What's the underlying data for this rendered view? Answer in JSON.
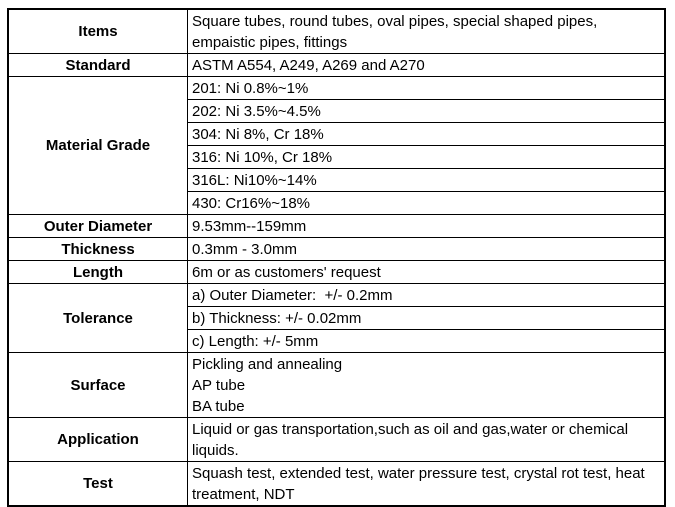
{
  "table": {
    "colors": {
      "border": "#000000",
      "text": "#000000",
      "background": "#ffffff"
    },
    "rows": [
      {
        "label": "Items",
        "lines": [
          "Square tubes, round tubes, oval pipes, special shaped pipes,",
          "empaistic pipes, fittings"
        ]
      },
      {
        "label": "Standard",
        "lines": [
          "ASTM A554, A249, A269 and A270"
        ]
      },
      {
        "label": "Material Grade",
        "lines": [
          "201: Ni 0.8%~1%",
          "202: Ni 3.5%~4.5%",
          "304: Ni 8%, Cr 18%",
          "316: Ni 10%, Cr 18%",
          "316L: Ni10%~14%",
          "430: Cr16%~18%"
        ]
      },
      {
        "label": "Outer Diameter",
        "lines": [
          "9.53mm--159mm"
        ]
      },
      {
        "label": "Thickness",
        "lines": [
          "0.3mm - 3.0mm"
        ]
      },
      {
        "label": "Length",
        "lines": [
          "6m or as customers' request"
        ]
      },
      {
        "label": "Tolerance",
        "lines": [
          "a) Outer Diameter:  +/- 0.2mm",
          "b) Thickness: +/- 0.02mm",
          "c) Length: +/- 5mm"
        ]
      },
      {
        "label": "Surface",
        "lines": [
          "Pickling and annealing",
          "AP tube",
          "BA tube"
        ]
      },
      {
        "label": "Application",
        "lines": [
          "Liquid or gas transportation,such as oil and gas,water or chemical liquids."
        ]
      },
      {
        "label": "Test",
        "lines": [
          "Squash test, extended test, water pressure test, crystal rot test, heat",
          "treatment, NDT"
        ]
      }
    ]
  }
}
